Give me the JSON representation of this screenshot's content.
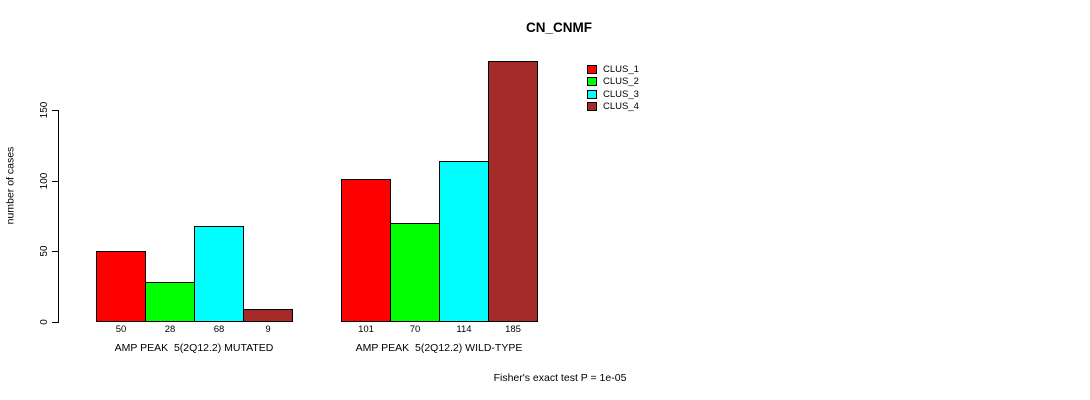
{
  "chart_data": {
    "type": "bar",
    "title": "CN_CNMF",
    "ylabel": "number of cases",
    "xlabel": "",
    "categories": [
      "AMP PEAK  5(2Q12.2) MUTATED",
      "AMP PEAK  5(2Q12.2) WILD-TYPE"
    ],
    "series": [
      {
        "name": "CLUS_1",
        "color": "#ff0000",
        "values": [
          50,
          101
        ]
      },
      {
        "name": "CLUS_2",
        "color": "#00ff00",
        "values": [
          28,
          70
        ]
      },
      {
        "name": "CLUS_3",
        "color": "#00ffff",
        "values": [
          68,
          114
        ]
      },
      {
        "name": "CLUS_4",
        "color": "#a52a2a",
        "values": [
          9,
          185
        ]
      }
    ],
    "bar_value_labels": [
      [
        "50",
        "28",
        "68",
        "9"
      ],
      [
        "101",
        "70",
        "114",
        "185"
      ]
    ],
    "yticks": [
      "0",
      "50",
      "100",
      "150"
    ],
    "ylim": [
      0,
      194
    ],
    "grid": false,
    "legend_position": "top-right",
    "legend_entries": [
      "CLUS_1",
      "CLUS_2",
      "CLUS_3",
      "CLUS_4"
    ],
    "annotation": "Fisher's exact test P = 1e-05",
    "bar_border_color": "#000000",
    "background_color": "#ffffff",
    "text_color": "#000000"
  }
}
